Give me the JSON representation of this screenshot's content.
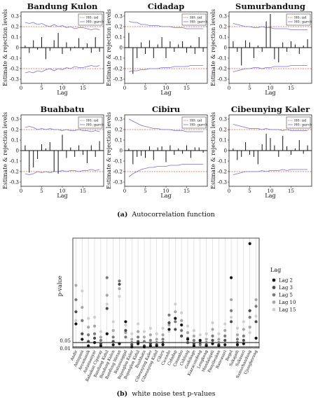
{
  "caption_a": {
    "letter": "(a)",
    "text": "Autocorrelation function"
  },
  "caption_b": {
    "letter": "(b)",
    "text": "white noise test p-values"
  },
  "colors": {
    "iid": "#e8502e",
    "garch": "#6f6fe8",
    "bar": "#111111",
    "zero": "#111111",
    "frame": "#222222",
    "dot_lag2": "#141414",
    "dot_lag3": "#4a4a4a",
    "dot_lag5": "#7a7a7a",
    "dot_lag10": "#a6a6a6",
    "dot_lag15": "#cecece"
  },
  "chart_data": [
    {
      "type": "bar",
      "panels": [
        {
          "title": "Bandung Kulon",
          "acf": [
            0.02,
            -0.05,
            0.07,
            -0.02,
            0.1,
            -0.11,
            -0.03,
            0.07,
            0.14,
            -0.06,
            0.05,
            -0.03,
            0.01,
            0.09,
            -0.02,
            0.04,
            -0.05,
            0.1,
            -0.04
          ],
          "iid": 0.2,
          "garch_upper": [
            0.24,
            0.23,
            0.24,
            0.22,
            0.23,
            0.21,
            0.2,
            0.22,
            0.2,
            0.21,
            0.19,
            0.2,
            0.18,
            0.19,
            0.19,
            0.18,
            0.17,
            0.18,
            0.17
          ],
          "garch_lower": [
            -0.24,
            -0.23,
            -0.24,
            -0.22,
            -0.23,
            -0.21,
            -0.2,
            -0.22,
            -0.2,
            -0.21,
            -0.19,
            -0.2,
            -0.18,
            -0.19,
            -0.19,
            -0.18,
            -0.17,
            -0.18,
            -0.17
          ]
        },
        {
          "title": "Cidadap",
          "acf": [
            0.14,
            -0.25,
            -0.1,
            0.05,
            -0.06,
            0.07,
            -0.1,
            0.03,
            0.1,
            -0.1,
            0.06,
            -0.04,
            0.03,
            0.06,
            -0.05,
            0.02,
            -0.06,
            0.1,
            -0.04
          ],
          "iid": 0.2,
          "garch_upper": [
            0.25,
            0.24,
            0.24,
            0.22,
            0.22,
            0.21,
            0.21,
            0.21,
            0.2,
            0.2,
            0.2,
            0.19,
            0.19,
            0.19,
            0.18,
            0.18,
            0.18,
            0.18,
            0.18
          ],
          "garch_lower": [
            -0.23,
            -0.22,
            -0.22,
            -0.21,
            -0.21,
            -0.2,
            -0.2,
            -0.2,
            -0.19,
            -0.19,
            -0.19,
            -0.18,
            -0.18,
            -0.18,
            -0.18,
            -0.17,
            -0.17,
            -0.17,
            -0.17
          ]
        },
        {
          "title": "Sumurbandung",
          "acf": [
            0.06,
            -0.04,
            -0.17,
            0.07,
            0.05,
            -0.1,
            0.02,
            -0.04,
            0.25,
            0.32,
            -0.11,
            -0.14,
            0.05,
            -0.04,
            0.06,
            0.03,
            -0.06,
            0.02,
            0.08
          ],
          "iid": 0.2,
          "garch_upper": [
            0.23,
            0.22,
            0.21,
            0.2,
            0.2,
            0.19,
            0.19,
            0.2,
            0.19,
            0.19,
            0.18,
            0.18,
            0.18,
            0.18,
            0.17,
            0.17,
            0.17,
            0.17,
            0.17
          ],
          "garch_lower": [
            -0.23,
            -0.22,
            -0.21,
            -0.2,
            -0.2,
            -0.19,
            -0.19,
            -0.2,
            -0.19,
            -0.19,
            -0.18,
            -0.18,
            -0.18,
            -0.18,
            -0.17,
            -0.17,
            -0.17,
            -0.17,
            -0.17
          ]
        },
        {
          "title": "Buahbatu",
          "acf": [
            0.05,
            -0.21,
            -0.16,
            -0.08,
            0.06,
            0.02,
            0.08,
            -0.2,
            -0.22,
            0.15,
            -0.07,
            0.03,
            -0.06,
            0.05,
            -0.04,
            -0.12,
            0.05,
            -0.06,
            0.09
          ],
          "iid": 0.2,
          "garch_upper": [
            0.22,
            0.23,
            0.22,
            0.2,
            0.21,
            0.2,
            0.21,
            0.2,
            0.2,
            0.19,
            0.2,
            0.19,
            0.19,
            0.2,
            0.19,
            0.19,
            0.18,
            0.19,
            0.18
          ],
          "garch_lower": [
            -0.22,
            -0.23,
            -0.22,
            -0.2,
            -0.21,
            -0.2,
            -0.21,
            -0.2,
            -0.2,
            -0.19,
            -0.2,
            -0.19,
            -0.19,
            -0.2,
            -0.19,
            -0.19,
            -0.18,
            -0.19,
            -0.18
          ]
        },
        {
          "title": "Cibiru",
          "acf": [
            0.02,
            -0.13,
            -0.06,
            -0.05,
            -0.07,
            0.04,
            -0.09,
            0.03,
            0.04,
            -0.11,
            0.05,
            -0.04,
            0.02,
            -0.03,
            0.05,
            -0.07,
            0.03,
            0.03,
            -0.02
          ],
          "iid": 0.2,
          "garch_upper": [
            0.3,
            0.28,
            0.26,
            0.24,
            0.23,
            0.22,
            0.21,
            0.21,
            0.2,
            0.2,
            0.2,
            0.19,
            0.19,
            0.19,
            0.18,
            0.18,
            0.18,
            0.18,
            0.18
          ],
          "garch_lower": [
            -0.25,
            -0.22,
            -0.2,
            -0.18,
            -0.17,
            -0.16,
            -0.16,
            -0.15,
            -0.15,
            -0.15,
            -0.14,
            -0.14,
            -0.14,
            -0.13,
            -0.13,
            -0.13,
            -0.13,
            -0.13,
            -0.13
          ]
        },
        {
          "title": "Cibeunying Kaler",
          "acf": [
            0.02,
            -0.09,
            -0.06,
            0.08,
            -0.04,
            -0.06,
            -0.13,
            0.06,
            0.16,
            0.12,
            0.05,
            -0.06,
            0.14,
            0.04,
            -0.04,
            0.02,
            0.1,
            -0.03,
            0.05
          ],
          "iid": 0.2,
          "garch_upper": [
            0.25,
            0.24,
            0.23,
            0.22,
            0.21,
            0.21,
            0.21,
            0.2,
            0.21,
            0.2,
            0.2,
            0.2,
            0.19,
            0.2,
            0.19,
            0.19,
            0.19,
            0.19,
            0.19
          ],
          "garch_lower": [
            -0.23,
            -0.22,
            -0.21,
            -0.2,
            -0.2,
            -0.2,
            -0.2,
            -0.19,
            -0.2,
            -0.19,
            -0.19,
            -0.19,
            -0.18,
            -0.19,
            -0.18,
            -0.18,
            -0.18,
            -0.18,
            -0.18
          ]
        }
      ],
      "xlabel": "Lag",
      "ylabel": "Estimate & rejection levels",
      "xticks": [
        "0",
        "5",
        "10",
        "15"
      ],
      "yticks": [
        "-0.3",
        "-0.2",
        "-0.1",
        "0",
        "0.1",
        "0.2",
        "0.3"
      ],
      "xlim": [
        0,
        20
      ],
      "ylim": [
        -0.34,
        0.34
      ],
      "legend": [
        {
          "name": "H0: iid",
          "color_key": "iid"
        },
        {
          "name": "H0: garch",
          "color_key": "garch"
        }
      ],
      "legend_position": "top-right"
    },
    {
      "type": "scatter",
      "regions": [
        "Andir",
        "Antapani",
        "Arcamanik",
        "Astanaanyar",
        "Babakan Ciparay",
        "Bandung Kidul",
        "Bandung Kulon",
        "Bandung Wetan",
        "Batununggal",
        "Bojongloa Kaler",
        "Bojongloa Kidul",
        "Buahbatu",
        "Cibeunying Kaler",
        "Cibeunying Kidul",
        "Cibiru",
        "Cicendo",
        "Cidadap",
        "Cinambo",
        "Coblong",
        "Gedebage",
        "Kiaracondong",
        "Lengkong",
        "Mandalajati",
        "Panyileukan",
        "Rancasari",
        "Regol",
        "Sukajadi",
        "Sukasari",
        "Sumurbandung",
        "Ujungberung"
      ],
      "ylabel": "p-value",
      "yticks": [
        "0.05",
        "0.01"
      ],
      "hlines": [
        0.05,
        0.01
      ],
      "ylim": [
        0,
        1
      ],
      "legend_title": "Lag",
      "legend_position": "right",
      "series": [
        {
          "name": "Lag 2",
          "color_key": "dot_lag2",
          "values": [
            0.22,
            0.08,
            0.02,
            0.05,
            0.02,
            0.13,
            0.03,
            0.04,
            0.24,
            0.01,
            0.04,
            0.01,
            0.02,
            0.02,
            0.03,
            0.17,
            0.27,
            0.21,
            0.08,
            0.02,
            0.07,
            0.02,
            0.04,
            0.02,
            0.03,
            0.64,
            0.03,
            0.04,
            0.95,
            0.09
          ]
        },
        {
          "name": "Lag 3",
          "color_key": "dot_lag3",
          "values": [
            0.33,
            0.13,
            0.06,
            0.09,
            0.04,
            0.36,
            0.06,
            0.58,
            0.16,
            0.03,
            0.06,
            0.02,
            0.04,
            0.03,
            0.05,
            0.23,
            0.17,
            0.11,
            0.05,
            0.04,
            0.05,
            0.03,
            0.07,
            0.03,
            0.07,
            0.24,
            0.05,
            0.07,
            0.34,
            0.24
          ]
        },
        {
          "name": "Lag 5",
          "color_key": "dot_lag5",
          "values": [
            0.44,
            0.25,
            0.12,
            0.13,
            0.07,
            0.64,
            0.1,
            0.61,
            0.1,
            0.05,
            0.1,
            0.06,
            0.07,
            0.05,
            0.08,
            0.3,
            0.24,
            0.16,
            0.09,
            0.07,
            0.03,
            0.05,
            0.11,
            0.05,
            0.11,
            0.34,
            0.08,
            0.11,
            0.28,
            0.38
          ]
        },
        {
          "name": "Lag 10",
          "color_key": "dot_lag10",
          "values": [
            0.57,
            0.37,
            0.19,
            0.2,
            0.1,
            0.48,
            0.16,
            0.54,
            0.14,
            0.08,
            0.15,
            0.1,
            0.12,
            0.08,
            0.12,
            0.21,
            0.33,
            0.25,
            0.14,
            0.11,
            0.07,
            0.08,
            0.17,
            0.08,
            0.16,
            0.44,
            0.12,
            0.17,
            0.19,
            0.44
          ]
        },
        {
          "name": "Lag 15",
          "color_key": "dot_lag15",
          "values": [
            0.25,
            0.52,
            0.27,
            0.28,
            0.15,
            0.4,
            0.24,
            0.47,
            0.21,
            0.13,
            0.22,
            0.15,
            0.18,
            0.13,
            0.18,
            0.15,
            0.4,
            0.32,
            0.2,
            0.16,
            0.12,
            0.13,
            0.23,
            0.13,
            0.22,
            0.28,
            0.18,
            0.24,
            0.14,
            0.29
          ]
        }
      ]
    }
  ]
}
